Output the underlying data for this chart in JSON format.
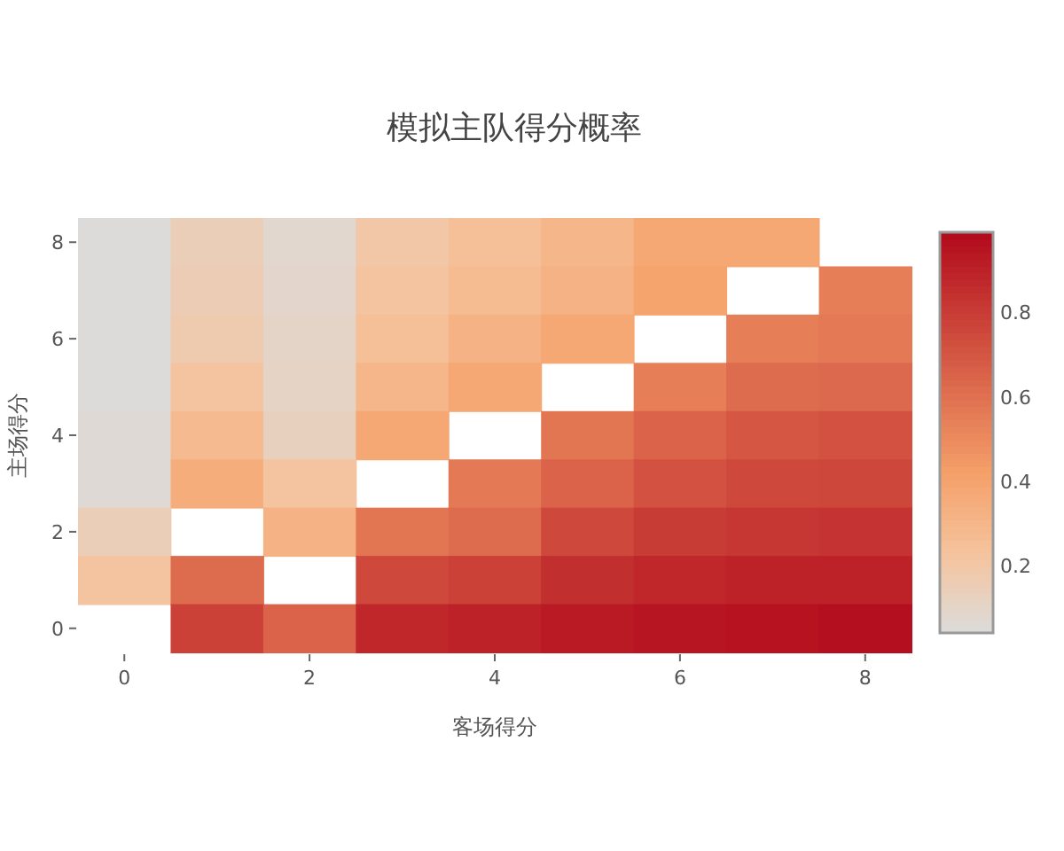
{
  "chart_data": {
    "type": "heatmap",
    "title": "模拟主队得分概率",
    "xlabel": "客场得分",
    "ylabel": "主场得分",
    "categories": [
      "0",
      null,
      "2",
      null,
      "4",
      null,
      "6",
      null,
      "8"
    ],
    "y_categories": [
      "8",
      null,
      "6",
      null,
      "4",
      null,
      "2",
      null,
      "0"
    ],
    "cells": [
      [
        0.05,
        0.15,
        0.08,
        0.2,
        0.25,
        0.3,
        0.38,
        0.38,
        null
      ],
      [
        0.05,
        0.16,
        0.09,
        0.22,
        0.27,
        0.32,
        0.4,
        null,
        0.55
      ],
      [
        0.05,
        0.18,
        0.1,
        0.25,
        0.32,
        0.38,
        null,
        0.55,
        0.57
      ],
      [
        0.05,
        0.22,
        0.11,
        0.3,
        0.38,
        null,
        0.55,
        0.62,
        0.63
      ],
      [
        0.06,
        0.28,
        0.13,
        0.38,
        null,
        0.58,
        0.65,
        0.7,
        0.72
      ],
      [
        0.06,
        0.35,
        0.22,
        null,
        0.57,
        0.65,
        0.72,
        0.75,
        0.76
      ],
      [
        0.15,
        null,
        0.32,
        0.58,
        0.62,
        0.75,
        0.8,
        0.82,
        0.83
      ],
      [
        0.22,
        0.62,
        null,
        0.75,
        0.78,
        0.85,
        0.88,
        0.9,
        0.9
      ],
      [
        null,
        0.78,
        0.65,
        0.88,
        0.9,
        0.93,
        0.95,
        0.96,
        0.97
      ]
    ],
    "clim": [
      0.04,
      0.99
    ],
    "cticks": [
      0.2,
      0.4,
      0.6,
      0.8
    ]
  }
}
